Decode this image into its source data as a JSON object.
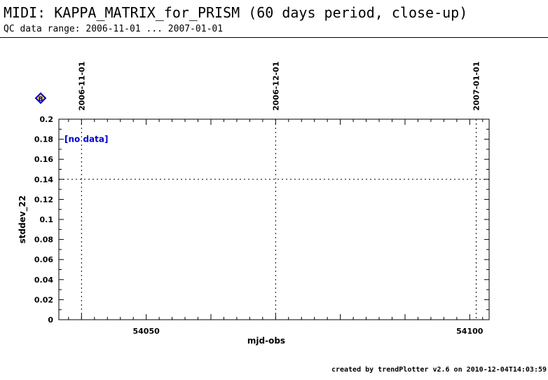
{
  "header": {
    "title": "MIDI: KAPPA_MATRIX_for_PRISM (60 days period, close-up)",
    "subtitle": "QC data range: 2006-11-01 ... 2007-01-01"
  },
  "footer": {
    "credit": "created by trendPlotter v2.6 on 2010-12-04T14:03:59"
  },
  "chart_data": {
    "type": "scatter",
    "title": "MIDI: KAPPA_MATRIX_for_PRISM (60 days period, close-up)",
    "xlabel": "mjd-obs",
    "ylabel": "stddev_22",
    "xlim": [
      54036.5,
      54103
    ],
    "ylim": [
      0,
      0.2
    ],
    "x_ticks_labeled": [
      54050,
      54100
    ],
    "y_ticks": [
      0,
      0.02,
      0.04,
      0.06,
      0.08,
      0.1,
      0.12,
      0.14,
      0.16,
      0.18,
      0.2
    ],
    "y_tick_labels": [
      "0",
      "0.02",
      "0.04",
      "0.06",
      "0.08",
      "0.1",
      "0.12",
      "0.14",
      "0.16",
      "0.18",
      "0.2"
    ],
    "reference_line_y": 0.14,
    "date_markers": [
      {
        "label": "2006-11-01",
        "mjd": 54040
      },
      {
        "label": "2006-12-01",
        "mjd": 54070
      },
      {
        "label": "2007-01-01",
        "mjd": 54101
      }
    ],
    "annotation": "[no data]",
    "marker_symbol": "B",
    "series": [],
    "grid": false
  },
  "colors": {
    "annotation": "#0000cc",
    "marker": "#0000cc",
    "marker_fill": "#ffd700",
    "axis": "#000000"
  }
}
